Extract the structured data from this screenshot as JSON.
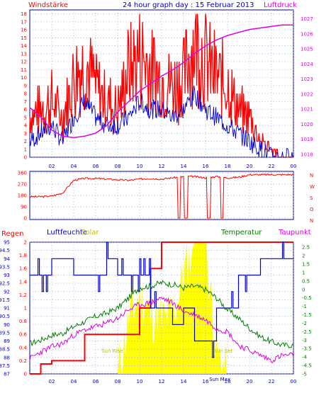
{
  "title": "24 hour graph day : 15 Februar 2013",
  "x_ticks": [
    "02",
    "04",
    "06",
    "08",
    "10",
    "12",
    "14",
    "16",
    "18",
    "20",
    "22",
    "00"
  ],
  "colors": {
    "wind": "#ff0000",
    "pressure": "#e000e0",
    "direction": "#ff0000",
    "humidity": "#0000cc",
    "temperature": "#008000",
    "dewpoint": "#e000e0",
    "rain": "#ff0000",
    "solar": "#ffff00",
    "grid": "#9aa4c0",
    "frame": "#0000aa"
  },
  "chart_data": [
    {
      "type": "line",
      "name": "wind-pressure",
      "title": "24 hour graph day : 15 Februar 2013",
      "y_left_label": "Windstärke",
      "y_right_label": "Luftdruck",
      "y_left_ticks": [
        "0",
        "1",
        "2",
        "3",
        "4",
        "5",
        "6",
        "7",
        "8",
        "9",
        "10",
        "11",
        "12",
        "13",
        "14",
        "15",
        "16",
        "17",
        "18"
      ],
      "y_right_ticks": [
        "1018",
        "1019",
        "1020",
        "1021",
        "1022",
        "1023",
        "1024",
        "1025",
        "1026",
        "1027"
      ],
      "ylim_left": [
        0,
        18.5
      ],
      "ylim_right": [
        1017.8,
        1027.6
      ],
      "x": [
        0,
        1,
        2,
        3,
        4,
        5,
        6,
        7,
        8,
        9,
        10,
        11,
        12,
        13,
        14,
        15,
        16,
        17,
        18,
        19,
        20,
        21,
        22,
        23,
        24
      ],
      "series": [
        {
          "name": "wind-gust",
          "values": [
            5,
            6,
            7,
            5,
            10,
            12,
            9,
            7,
            6,
            11,
            13,
            11,
            10,
            9,
            10,
            15,
            12,
            10,
            9,
            6,
            5,
            2,
            1,
            0,
            0
          ]
        },
        {
          "name": "wind-avg",
          "values": [
            2,
            3,
            4,
            2,
            5,
            7,
            5,
            4,
            4,
            5,
            7,
            6,
            6,
            5,
            6,
            8,
            6,
            5,
            4,
            3,
            2,
            1,
            0,
            0,
            0
          ]
        },
        {
          "name": "pressure",
          "values": [
            1021.1,
            1020.5,
            1019.6,
            1019.2,
            1019.1,
            1019.2,
            1019.4,
            1019.9,
            1020.8,
            1021.5,
            1022.2,
            1022.7,
            1023.2,
            1023.6,
            1024.1,
            1024.7,
            1025.2,
            1025.6,
            1025.9,
            1026.1,
            1026.3,
            1026.4,
            1026.5,
            1026.6,
            1026.6
          ]
        }
      ]
    },
    {
      "type": "line",
      "name": "wind-direction",
      "y_ticks": [
        "0",
        "90",
        "180",
        "270",
        "360"
      ],
      "y_right_ticks": [
        "N",
        "W",
        "S",
        "O",
        "N"
      ],
      "ylim": [
        0,
        360
      ],
      "x": [
        0,
        1,
        2,
        3,
        4,
        5,
        6,
        7,
        8,
        9,
        10,
        11,
        12,
        13,
        14,
        15,
        16,
        17,
        18,
        19,
        20,
        21,
        22,
        23,
        24
      ],
      "series": [
        {
          "name": "direction",
          "values": [
            170,
            170,
            175,
            200,
            300,
            315,
            315,
            310,
            305,
            300,
            310,
            315,
            310,
            320,
            330,
            330,
            320,
            330,
            320,
            325,
            345,
            345,
            345,
            345,
            345
          ]
        }
      ],
      "drops_to_zero_hours": [
        13.6,
        14.2,
        16.3,
        17.5
      ]
    },
    {
      "type": "line",
      "name": "rain-humidity-solar-temperature",
      "labels": {
        "rain": "Regen",
        "humidity": "Luftfeuchte",
        "solar": "Solar",
        "temperature": "Temperatur",
        "dewpoint": "Taupunkt"
      },
      "y_rain_ticks": [
        "0",
        "0.2",
        "0.4",
        "0.6",
        "0.8",
        "1",
        "1.2",
        "1.4",
        "1.6",
        "1.8",
        "2"
      ],
      "y_humidity_ticks": [
        "87",
        "87.5",
        "88",
        "88.5",
        "89",
        "89.5",
        "90",
        "90.5",
        "91",
        "91.5",
        "92",
        "92.5",
        "93",
        "93.5",
        "94",
        "94.5",
        "95"
      ],
      "y_temp_ticks": [
        "-5",
        "-4.5",
        "-4",
        "-3.5",
        "-3",
        "-2.5",
        "-2",
        "-1.5",
        "-1",
        "-0.5",
        "0",
        "0.5",
        "1",
        "1.5",
        "2",
        "2.5"
      ],
      "ylim_rain": [
        0,
        2
      ],
      "ylim_humidity": [
        87,
        95
      ],
      "ylim_temp": [
        -5,
        2.8
      ],
      "x": [
        0,
        1,
        2,
        3,
        4,
        5,
        6,
        7,
        8,
        9,
        10,
        11,
        12,
        13,
        14,
        15,
        16,
        17,
        18,
        19,
        20,
        21,
        22,
        23,
        24
      ],
      "series": [
        {
          "name": "rain",
          "values": [
            0,
            0.15,
            0.2,
            0.2,
            0.2,
            0.6,
            0.6,
            0.6,
            0.6,
            0.6,
            1.0,
            1.6,
            2.0,
            2.0,
            2.0,
            2.0,
            2.0,
            2.0,
            2.0,
            2.0,
            2.0,
            2.0,
            2.0,
            2.0,
            2.0
          ]
        },
        {
          "name": "humidity",
          "values": [
            93,
            93,
            94,
            94,
            93,
            93,
            93,
            94,
            93,
            93,
            93,
            91,
            91,
            90,
            91,
            89,
            89,
            91,
            91,
            93,
            93,
            94,
            94,
            94,
            94
          ]
        },
        {
          "name": "temperature",
          "values": [
            -3.2,
            -3.0,
            -2.7,
            -2.6,
            -2.2,
            -1.9,
            -1.6,
            -1.4,
            -1.1,
            -0.5,
            0.1,
            0.2,
            0.4,
            0.3,
            0.1,
            0.2,
            0.0,
            -0.5,
            -1.2,
            -1.7,
            -2.3,
            -2.8,
            -3.1,
            -3.3,
            -3.3
          ]
        },
        {
          "name": "dewpoint",
          "values": [
            -4.1,
            -3.7,
            -3.4,
            -3.2,
            -2.7,
            -2.4,
            -2.2,
            -2.0,
            -1.7,
            -1.2,
            -0.9,
            -0.8,
            -0.5,
            -0.8,
            -1.3,
            -1.5,
            -1.8,
            -2.3,
            -2.5,
            -3.3,
            -3.6,
            -3.9,
            -4.2,
            -3.9,
            -3.9
          ]
        },
        {
          "name": "solar",
          "values": [
            0,
            0,
            0,
            0,
            0,
            0,
            0,
            0,
            0,
            0.8,
            1.2,
            0.9,
            0.8,
            0.9,
            1.5,
            2.0,
            2.0,
            0.3,
            0,
            0,
            0,
            0,
            0,
            0,
            0
          ]
        }
      ],
      "annotations": [
        {
          "text": "Sun Rise",
          "hour": 7.5
        },
        {
          "text": "Sun Set",
          "hour": 17.6
        },
        {
          "text": "Sun Max",
          "hour": 17.3
        }
      ]
    }
  ]
}
